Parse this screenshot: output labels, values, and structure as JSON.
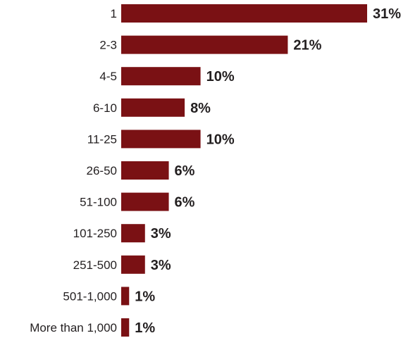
{
  "chart_data": {
    "type": "bar",
    "orientation": "horizontal",
    "categories": [
      "1",
      "2-3",
      "4-5",
      "6-10",
      "11-25",
      "26-50",
      "51-100",
      "101-250",
      "251-500",
      "501-1,000",
      "More than 1,000"
    ],
    "values": [
      31,
      21,
      10,
      8,
      10,
      6,
      6,
      3,
      3,
      1,
      1
    ],
    "value_labels": [
      "31%",
      "21%",
      "10%",
      "8%",
      "10%",
      "6%",
      "6%",
      "3%",
      "3%",
      "1%",
      "1%"
    ],
    "bar_color": "#7a1114",
    "title": "",
    "xlabel": "",
    "ylabel": "",
    "xlim": [
      0,
      31
    ],
    "grid": false,
    "legend": "none"
  }
}
